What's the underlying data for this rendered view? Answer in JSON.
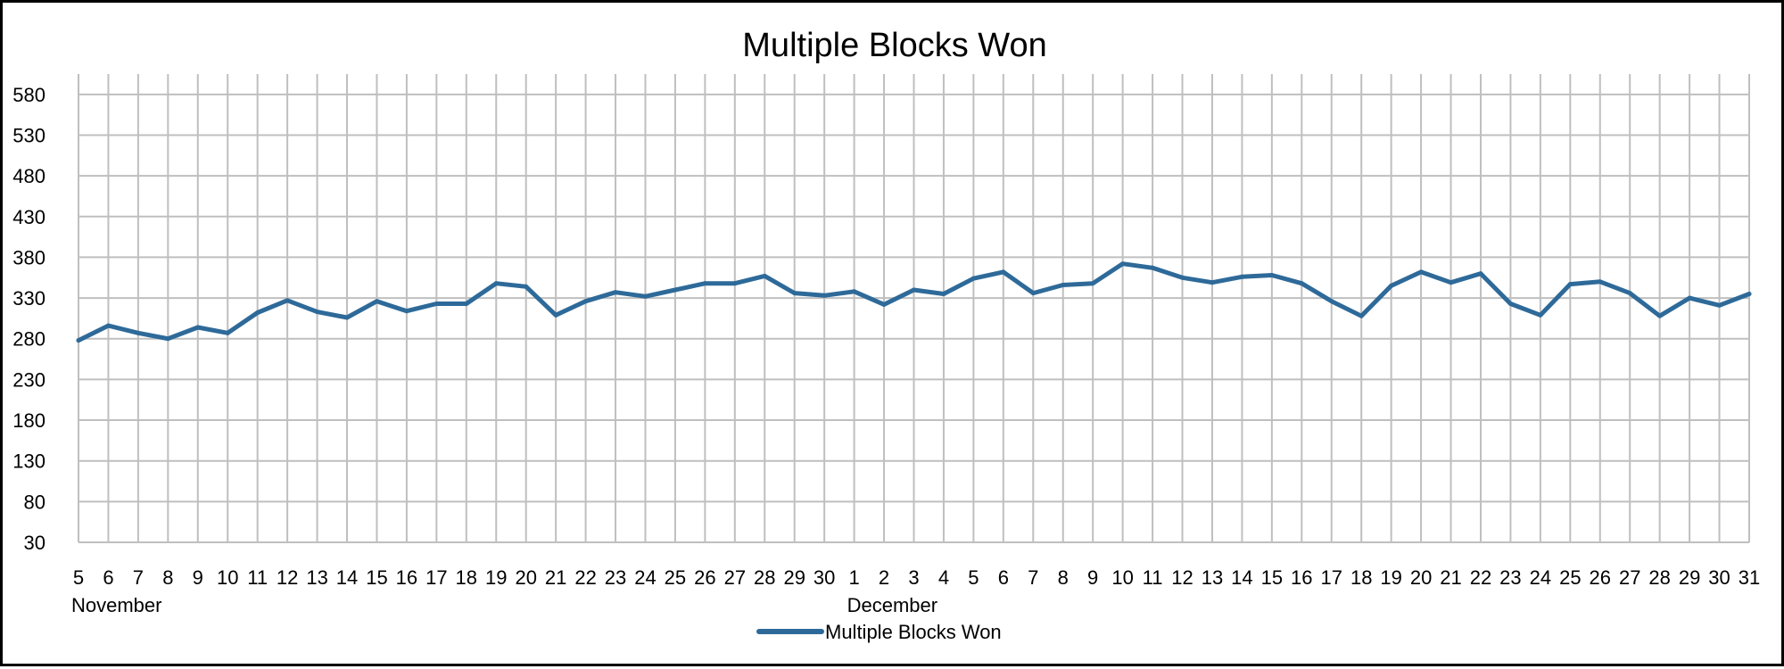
{
  "chart_data": {
    "type": "line",
    "title": "Multiple Blocks Won",
    "xlabel": "",
    "ylabel": "",
    "ylim": [
      30,
      605
    ],
    "yticks": [
      30,
      80,
      130,
      180,
      230,
      280,
      330,
      380,
      430,
      480,
      530,
      580
    ],
    "grid": true,
    "legend_position": "bottom",
    "series_color": "#2e6a99",
    "x": [
      "5",
      "6",
      "7",
      "8",
      "9",
      "10",
      "11",
      "12",
      "13",
      "14",
      "15",
      "16",
      "17",
      "18",
      "19",
      "20",
      "21",
      "22",
      "23",
      "24",
      "25",
      "26",
      "27",
      "28",
      "29",
      "30",
      "1",
      "2",
      "3",
      "4",
      "5",
      "6",
      "7",
      "8",
      "9",
      "10",
      "11",
      "12",
      "13",
      "14",
      "15",
      "16",
      "17",
      "18",
      "19",
      "20",
      "21",
      "22",
      "23",
      "24",
      "25",
      "26",
      "27",
      "28",
      "29",
      "30",
      "31"
    ],
    "month_labels": [
      {
        "label": "November",
        "index": 0
      },
      {
        "label": "December",
        "index": 26
      }
    ],
    "series": [
      {
        "name": "Multiple Blocks Won",
        "values": [
          278,
          296,
          287,
          280,
          294,
          287,
          312,
          327,
          313,
          306,
          326,
          314,
          323,
          323,
          348,
          344,
          309,
          326,
          337,
          332,
          340,
          348,
          348,
          357,
          336,
          333,
          338,
          322,
          340,
          335,
          354,
          362,
          336,
          346,
          348,
          372,
          367,
          355,
          349,
          356,
          358,
          348,
          326,
          308,
          345,
          362,
          349,
          360,
          323,
          309,
          347,
          350,
          336,
          308,
          330,
          321,
          335
        ]
      }
    ]
  }
}
